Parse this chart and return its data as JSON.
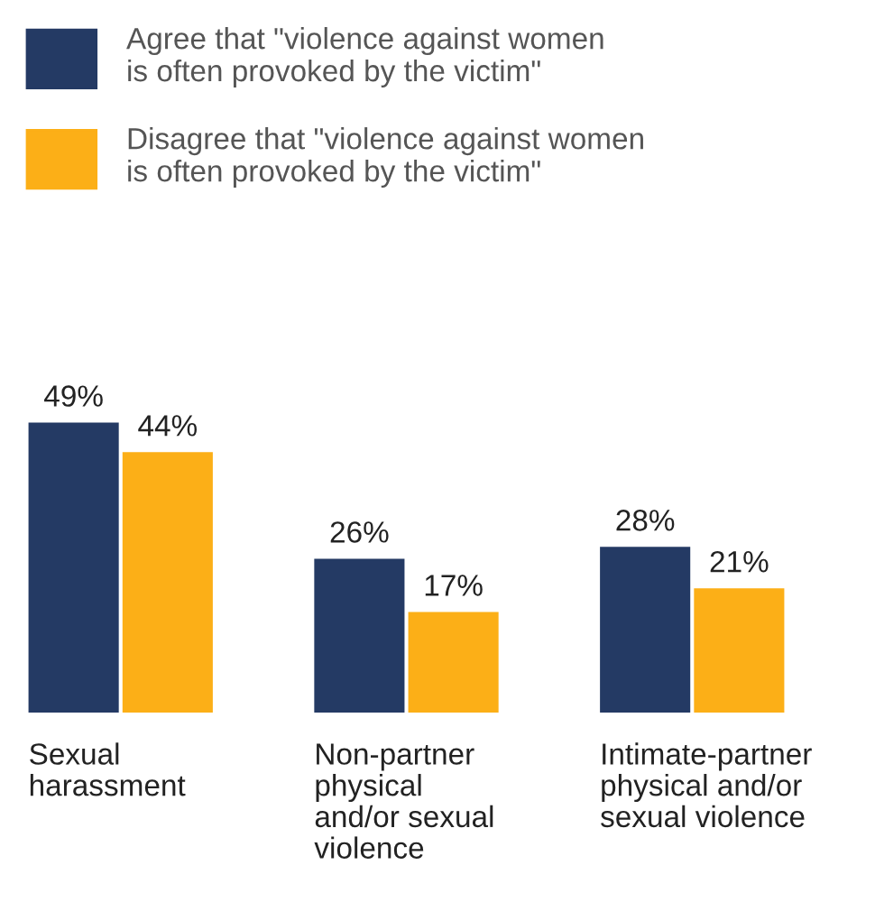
{
  "chart_data": {
    "type": "bar",
    "categories": [
      "Sexual\nharassment",
      "Non-partner\nphysical\nand/or sexual\nviolence",
      "Intimate-partner\nphysical and/or\nsexual violence"
    ],
    "series": [
      {
        "name": "Agree that \"violence against women\nis often provoked by the victim\"",
        "color": "#243a64",
        "values": [
          49,
          26,
          28
        ],
        "value_labels": [
          "49%",
          "26%",
          "28%"
        ]
      },
      {
        "name": "Disagree that \"violence against women\nis often provoked by the victim\"",
        "color": "#fcaf17",
        "values": [
          44,
          17,
          21
        ],
        "value_labels": [
          "44%",
          "17%",
          "21%"
        ]
      }
    ],
    "legend": "top left"
  }
}
